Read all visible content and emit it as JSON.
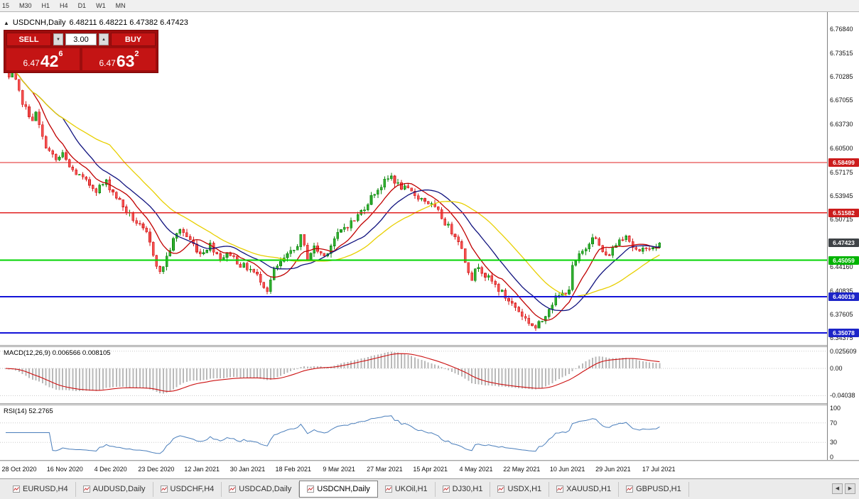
{
  "toolbar": {
    "timeframes": [
      "15",
      "M30",
      "H1",
      "H4",
      "D1",
      "W1",
      "MN"
    ]
  },
  "chart_header": {
    "collapse_icon": "▲",
    "symbol": "USDCNH,Daily",
    "ohlc": "6.48211 6.48221 6.47382 6.47423"
  },
  "trade_panel": {
    "sell_label": "SELL",
    "buy_label": "BUY",
    "volume": "3.00",
    "step_down_icon": "▼",
    "step_up_icon": "▲",
    "sell_price": {
      "small": "6.47",
      "big": "42",
      "sup": "6"
    },
    "buy_price": {
      "small": "6.47",
      "big": "63",
      "sup": "2"
    }
  },
  "price_scale": {
    "ticks": [
      "6.76840",
      "6.73515",
      "6.70285",
      "6.67055",
      "6.63730",
      "6.60500",
      "6.57175",
      "6.53945",
      "6.50715",
      "6.44160",
      "6.40835",
      "6.37605",
      "6.34375"
    ],
    "badges": [
      {
        "value": "6.58499",
        "price": 6.58499,
        "color": "#cc1c1c"
      },
      {
        "value": "6.51582",
        "price": 6.51582,
        "color": "#cc1c1c"
      },
      {
        "value": "6.47423",
        "price": 6.47423,
        "color": "#3f4347"
      },
      {
        "value": "6.45059",
        "price": 6.45059,
        "color": "#00b400"
      },
      {
        "value": "6.40019",
        "price": 6.40019,
        "color": "#1d25c8"
      },
      {
        "value": "6.35078",
        "price": 6.35078,
        "color": "#1d25c8"
      }
    ]
  },
  "macd_panel": {
    "label": "MACD(12,26,9) 0.006566 0.008105",
    "scale_labels": [
      {
        "text": "0.025609",
        "value": 0.025609
      },
      {
        "text": "0.00",
        "value": 0
      },
      {
        "text": "-0.04038",
        "value": -0.04038
      }
    ]
  },
  "rsi_panel": {
    "label": "RSI(14) 52.2765",
    "levels": [
      {
        "text": "100",
        "value": 100
      },
      {
        "text": "70",
        "value": 70
      },
      {
        "text": "30",
        "value": 30
      },
      {
        "text": "0",
        "value": 0
      }
    ]
  },
  "date_axis": {
    "labels": [
      "28 Oct 2020",
      "16 Nov 2020",
      "4 Dec 2020",
      "23 Dec 2020",
      "12 Jan 2021",
      "30 Jan 2021",
      "18 Feb 2021",
      "9 Mar 2021",
      "27 Mar 2021",
      "15 Apr 2021",
      "4 May 2021",
      "22 May 2021",
      "10 Jun 2021",
      "29 Jun 2021",
      "17 Jul 2021"
    ]
  },
  "tabs": {
    "scroll_left_icon": "◀",
    "scroll_right_icon": "▶",
    "items": [
      {
        "label": "EURUSD,H4",
        "active": false
      },
      {
        "label": "AUDUSD,Daily",
        "active": false
      },
      {
        "label": "USDCHF,H4",
        "active": false
      },
      {
        "label": "USDCAD,Daily",
        "active": false
      },
      {
        "label": "USDCNH,Daily",
        "active": true
      },
      {
        "label": "UKOil,H1",
        "active": false
      },
      {
        "label": "DJ30,H1",
        "active": false
      },
      {
        "label": "USDX,H1",
        "active": false
      },
      {
        "label": "XAUUSD,H1",
        "active": false
      },
      {
        "label": "GBPUSD,H1",
        "active": false
      }
    ]
  },
  "chart_data": {
    "type": "candlestick",
    "symbol": "USDCNH",
    "timeframe": "Daily",
    "ohlc_display": {
      "open": 6.48211,
      "high": 6.48221,
      "low": 6.47382,
      "close": 6.47423
    },
    "current_price": 6.47423,
    "visible_dates": {
      "first": "28 Oct 2020",
      "last": "17 Jul 2021"
    },
    "price_axis": {
      "min": 6.334,
      "max": 6.792
    },
    "candle_count": 196,
    "colors": {
      "background": "#ffffff",
      "up": {
        "fill": "#2fae2f",
        "stroke": "#0c860c"
      },
      "down": {
        "fill": "#f45050",
        "stroke": "#d01818"
      }
    },
    "moving_averages": [
      {
        "period": 9,
        "color": "#c00000"
      },
      {
        "period": 18,
        "color": "#10127e"
      },
      {
        "period": 32,
        "color": "#e8cf00"
      }
    ],
    "levels": [
      {
        "price": 6.58499,
        "color": "#e02020",
        "width": 1.2
      },
      {
        "price": 6.51582,
        "color": "#e02020",
        "width": 1.2
      },
      {
        "price": 6.45059,
        "color": "#00d400",
        "width": 2
      },
      {
        "price": 6.40019,
        "color": "#1414d8",
        "width": 2
      },
      {
        "price": 6.35078,
        "color": "#1414d8",
        "width": 2
      }
    ],
    "indicators": {
      "macd": {
        "fast": 12,
        "slow": 26,
        "signal": 9,
        "value": 0.006566,
        "signal_value": 0.008105
      },
      "rsi": {
        "period": 14,
        "value": 52.2765
      }
    },
    "close_path_anchors": [
      [
        0,
        6.72
      ],
      [
        1,
        6.698
      ],
      [
        2,
        6.71
      ],
      [
        4,
        6.68
      ],
      [
        6,
        6.658
      ],
      [
        8,
        6.645
      ],
      [
        9,
        6.652
      ],
      [
        11,
        6.618
      ],
      [
        13,
        6.6
      ],
      [
        15,
        6.588
      ],
      [
        17,
        6.596
      ],
      [
        19,
        6.578
      ],
      [
        21,
        6.57
      ],
      [
        24,
        6.558
      ],
      [
        27,
        6.548
      ],
      [
        30,
        6.558
      ],
      [
        33,
        6.538
      ],
      [
        36,
        6.518
      ],
      [
        39,
        6.502
      ],
      [
        42,
        6.486
      ],
      [
        44,
        6.46
      ],
      [
        46,
        6.432
      ],
      [
        48,
        6.455
      ],
      [
        50,
        6.478
      ],
      [
        52,
        6.494
      ],
      [
        55,
        6.478
      ],
      [
        58,
        6.46
      ],
      [
        61,
        6.472
      ],
      [
        64,
        6.454
      ],
      [
        67,
        6.46
      ],
      [
        70,
        6.444
      ],
      [
        73,
        6.438
      ],
      [
        76,
        6.424
      ],
      [
        78,
        6.41
      ],
      [
        80,
        6.436
      ],
      [
        83,
        6.452
      ],
      [
        86,
        6.464
      ],
      [
        88,
        6.482
      ],
      [
        90,
        6.455
      ],
      [
        92,
        6.468
      ],
      [
        95,
        6.456
      ],
      [
        98,
        6.48
      ],
      [
        101,
        6.496
      ],
      [
        104,
        6.506
      ],
      [
        107,
        6.524
      ],
      [
        110,
        6.544
      ],
      [
        113,
        6.558
      ],
      [
        115,
        6.566
      ],
      [
        117,
        6.554
      ],
      [
        120,
        6.546
      ],
      [
        123,
        6.538
      ],
      [
        126,
        6.53
      ],
      [
        129,
        6.516
      ],
      [
        132,
        6.496
      ],
      [
        135,
        6.48
      ],
      [
        137,
        6.45
      ],
      [
        139,
        6.426
      ],
      [
        141,
        6.444
      ],
      [
        143,
        6.43
      ],
      [
        146,
        6.416
      ],
      [
        149,
        6.4
      ],
      [
        152,
        6.386
      ],
      [
        155,
        6.37
      ],
      [
        158,
        6.357
      ],
      [
        160,
        6.368
      ],
      [
        162,
        6.386
      ],
      [
        164,
        6.398
      ],
      [
        166,
        6.404
      ],
      [
        168,
        6.412
      ],
      [
        169,
        6.44
      ],
      [
        171,
        6.456
      ],
      [
        173,
        6.468
      ],
      [
        175,
        6.486
      ],
      [
        177,
        6.47
      ],
      [
        179,
        6.455
      ],
      [
        181,
        6.466
      ],
      [
        183,
        6.479
      ],
      [
        185,
        6.487
      ],
      [
        187,
        6.469
      ],
      [
        189,
        6.459
      ],
      [
        191,
        6.471
      ],
      [
        193,
        6.465
      ],
      [
        195,
        6.47423
      ]
    ]
  }
}
